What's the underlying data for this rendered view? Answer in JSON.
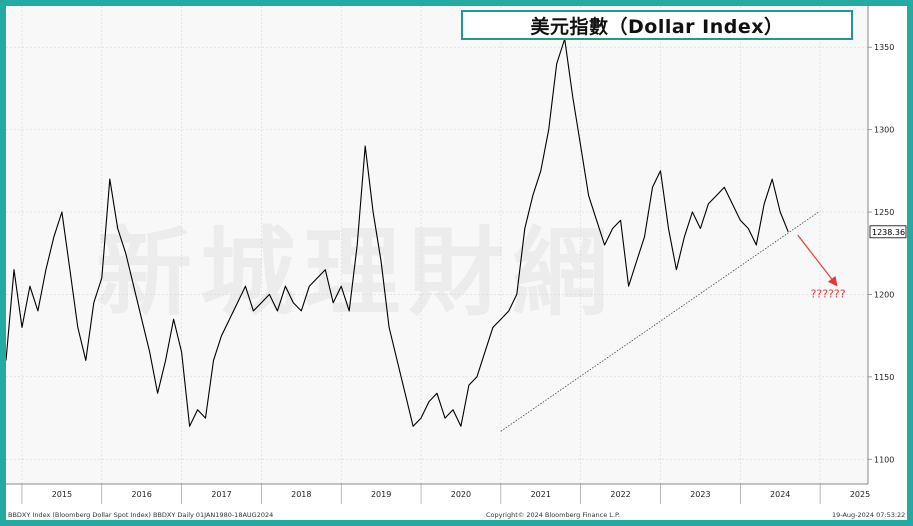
{
  "chart_data": {
    "type": "line",
    "title": "美元指數（Dollar Index）",
    "ylim": [
      1085,
      1375
    ],
    "yticks": [
      1100,
      1150,
      1200,
      1250,
      1300,
      1350
    ],
    "xlim": [
      2014.8,
      2025.6
    ],
    "x_tick_labels": [
      "2015",
      "2016",
      "2017",
      "2018",
      "2019",
      "2020",
      "2021",
      "2022",
      "2023",
      "2024",
      "2025"
    ],
    "x_tick_positions": [
      2015.0,
      2016.0,
      2017.0,
      2018.0,
      2019.0,
      2020.0,
      2021.0,
      2022.0,
      2023.0,
      2024.0,
      2025.0
    ],
    "grid": true,
    "last_value_label": "1238.36",
    "series": [
      {
        "color": "#000000",
        "x": [
          2014.8,
          2014.9,
          2015.0,
          2015.1,
          2015.2,
          2015.3,
          2015.4,
          2015.5,
          2015.6,
          2015.7,
          2015.8,
          2015.9,
          2016.0,
          2016.1,
          2016.2,
          2016.3,
          2016.4,
          2016.5,
          2016.6,
          2016.7,
          2016.8,
          2016.9,
          2017.0,
          2017.1,
          2017.2,
          2017.3,
          2017.4,
          2017.5,
          2017.6,
          2017.7,
          2017.8,
          2017.9,
          2018.0,
          2018.1,
          2018.2,
          2018.3,
          2018.4,
          2018.5,
          2018.6,
          2018.7,
          2018.8,
          2018.9,
          2019.0,
          2019.1,
          2019.2,
          2019.3,
          2019.4,
          2019.5,
          2019.6,
          2019.7,
          2019.8,
          2019.9,
          2020.0,
          2020.1,
          2020.2,
          2020.3,
          2020.4,
          2020.5,
          2020.6,
          2020.7,
          2020.8,
          2020.9,
          2021.0,
          2021.1,
          2021.2,
          2021.3,
          2021.4,
          2021.5,
          2021.6,
          2021.7,
          2021.8,
          2021.9,
          2022.0,
          2022.1,
          2022.2,
          2022.3,
          2022.4,
          2022.5,
          2022.6,
          2022.7,
          2022.8,
          2022.9,
          2023.0,
          2023.1,
          2023.2,
          2023.3,
          2023.4,
          2023.5,
          2023.6,
          2023.7,
          2023.8,
          2023.9,
          2024.0,
          2024.1,
          2024.2,
          2024.3,
          2024.4,
          2024.5,
          2024.6
        ],
        "y": [
          1160,
          1215,
          1180,
          1205,
          1190,
          1215,
          1235,
          1250,
          1215,
          1180,
          1160,
          1195,
          1210,
          1270,
          1240,
          1225,
          1205,
          1185,
          1165,
          1140,
          1160,
          1185,
          1165,
          1120,
          1130,
          1125,
          1160,
          1175,
          1185,
          1195,
          1205,
          1190,
          1195,
          1200,
          1190,
          1205,
          1195,
          1190,
          1205,
          1210,
          1215,
          1195,
          1205,
          1190,
          1230,
          1290,
          1250,
          1220,
          1180,
          1160,
          1140,
          1120,
          1125,
          1135,
          1140,
          1125,
          1130,
          1120,
          1145,
          1150,
          1165,
          1180,
          1185,
          1190,
          1200,
          1240,
          1260,
          1275,
          1300,
          1340,
          1355,
          1320,
          1290,
          1260,
          1245,
          1230,
          1240,
          1245,
          1205,
          1220,
          1235,
          1265,
          1275,
          1240,
          1215,
          1235,
          1250,
          1240,
          1255,
          1260,
          1265,
          1255,
          1245,
          1240,
          1230,
          1255,
          1270,
          1250,
          1238
        ]
      }
    ],
    "trendline": {
      "x": [
        2021.0,
        2024.98
      ],
      "y": [
        1117,
        1250
      ]
    },
    "arrow": {
      "x": [
        2024.72,
        2025.2
      ],
      "y": [
        1236,
        1206
      ]
    },
    "annotation": {
      "text": "??????",
      "x": 2025.1,
      "y": 1198
    }
  },
  "footer": {
    "left": "BBDXY Index (Bloomberg Dollar Spot Index) BBDXY  Daily 01JAN1980-18AUG2024",
    "center": "Copyright© 2024 Bloomberg Finance L.P.",
    "right": "19-Aug-2024 07:53:22"
  },
  "watermark": "新城理財網"
}
